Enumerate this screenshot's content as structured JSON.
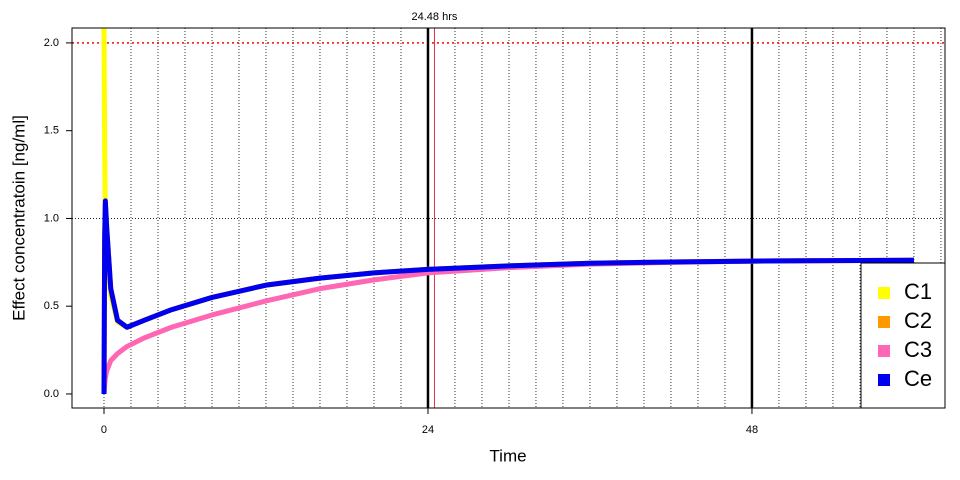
{
  "chart_data": {
    "type": "line",
    "xlabel": "Time",
    "ylabel": "Effect concentratoin [ng/ml]",
    "x": [
      0,
      0.05,
      0.1,
      0.2,
      0.5,
      1,
      1.7,
      3,
      5,
      8,
      12,
      16,
      20,
      24,
      30,
      36,
      42,
      48,
      54,
      60
    ],
    "series": [
      {
        "name": "C1",
        "color": "#ffff00",
        "values": [
          2.1,
          1.4,
          1.0,
          0.82,
          0.56,
          0.41,
          0.38,
          0.42,
          0.48,
          0.55,
          0.62,
          0.66,
          0.69,
          0.71,
          0.73,
          0.745,
          0.752,
          0.757,
          0.76,
          0.762
        ]
      },
      {
        "name": "C2",
        "color": "#ff9900",
        "values": [
          0,
          0.85,
          1.08,
          0.95,
          0.6,
          0.42,
          0.38,
          0.42,
          0.48,
          0.55,
          0.62,
          0.66,
          0.69,
          0.71,
          0.73,
          0.745,
          0.752,
          0.757,
          0.76,
          0.762
        ]
      },
      {
        "name": "C3",
        "color": "#ff66b3",
        "values": [
          0,
          0.05,
          0.09,
          0.13,
          0.19,
          0.23,
          0.27,
          0.32,
          0.38,
          0.45,
          0.53,
          0.6,
          0.65,
          0.69,
          0.72,
          0.74,
          0.75,
          0.757,
          0.76,
          0.762
        ]
      },
      {
        "name": "Ce",
        "color": "#0000ee",
        "values": [
          0,
          0.9,
          1.1,
          0.95,
          0.6,
          0.42,
          0.38,
          0.42,
          0.48,
          0.55,
          0.62,
          0.66,
          0.69,
          0.71,
          0.73,
          0.745,
          0.752,
          0.757,
          0.76,
          0.762
        ]
      }
    ],
    "xlim": [
      -2.37,
      62.3
    ],
    "ylim": [
      -0.08,
      2.085
    ],
    "xticks": [
      0,
      24,
      48
    ],
    "yticks": [
      {
        "value": 0,
        "label": "0.0"
      },
      {
        "value": 0.5,
        "label": "0.5"
      },
      {
        "value": 1,
        "label": "1.0"
      },
      {
        "value": 1.5,
        "label": "1.5"
      },
      {
        "value": 2,
        "label": "2.0"
      }
    ],
    "xgrid": [
      0,
      2,
      4,
      6,
      8,
      10,
      12,
      14,
      16,
      18,
      20,
      22,
      26,
      28,
      30,
      32,
      34,
      36,
      38,
      40,
      42,
      44,
      46,
      50,
      52,
      54,
      56,
      58,
      60,
      62
    ],
    "ygrid": [
      1
    ],
    "reference_lines": [
      24,
      48
    ],
    "threshold": 2,
    "marker": {
      "value": 24.48,
      "label": "24.48 hrs"
    },
    "legend": "bottom-right"
  }
}
